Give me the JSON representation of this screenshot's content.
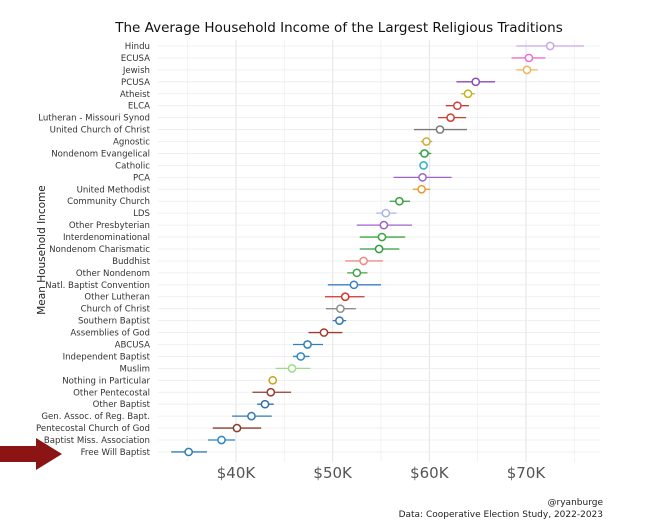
{
  "chart_data": {
    "type": "dot-with-error-bars",
    "title": "The Average Household Income of the Largest Religious Traditions",
    "ylabel": "Mean Household Income",
    "xlabel": "",
    "xlim": [
      33000,
      77000
    ],
    "xticks": [
      40000,
      50000,
      60000,
      70000
    ],
    "xtick_labels": [
      "$40K",
      "$50K",
      "$60K",
      "$70K"
    ],
    "grid": true,
    "points": [
      {
        "label": "Hindu",
        "value": 72500,
        "low": 69000,
        "high": 76000,
        "color": "#c9a6ea"
      },
      {
        "label": "ECUSA",
        "value": 70300,
        "low": 68500,
        "high": 72000,
        "color": "#e86fd0"
      },
      {
        "label": "Jewish",
        "value": 70100,
        "low": 69000,
        "high": 71200,
        "color": "#f2b25a"
      },
      {
        "label": "PCUSA",
        "value": 64800,
        "low": 62800,
        "high": 66800,
        "color": "#8b4ab3"
      },
      {
        "label": "Atheist",
        "value": 64000,
        "low": 63300,
        "high": 64700,
        "color": "#c9b21c"
      },
      {
        "label": "ELCA",
        "value": 62900,
        "low": 61700,
        "high": 64100,
        "color": "#d63a3a"
      },
      {
        "label": "Lutheran - Missouri Synod",
        "value": 62200,
        "low": 60900,
        "high": 63800,
        "color": "#d23c2e"
      },
      {
        "label": "United Church of Christ",
        "value": 61100,
        "low": 58400,
        "high": 63900,
        "color": "#7a7a7a"
      },
      {
        "label": "Agnostic",
        "value": 59700,
        "low": 59100,
        "high": 60300,
        "color": "#d1a93a"
      },
      {
        "label": "Nondenom Evangelical",
        "value": 59500,
        "low": 58900,
        "high": 60200,
        "color": "#2e9e48"
      },
      {
        "label": "Catholic",
        "value": 59400,
        "low": 59200,
        "high": 59700,
        "color": "#29b3c9"
      },
      {
        "label": "PCA",
        "value": 59300,
        "low": 56300,
        "high": 62300,
        "color": "#9a63c9"
      },
      {
        "label": "United Methodist",
        "value": 59200,
        "low": 58300,
        "high": 60100,
        "color": "#e89a2c"
      },
      {
        "label": "Community Church",
        "value": 56900,
        "low": 55900,
        "high": 58000,
        "color": "#35a03a"
      },
      {
        "label": "LDS",
        "value": 55500,
        "low": 54500,
        "high": 56600,
        "color": "#a9b6ea"
      },
      {
        "label": "Other Presbyterian",
        "value": 55300,
        "low": 52500,
        "high": 58200,
        "color": "#9b63c9"
      },
      {
        "label": "Interdenominational",
        "value": 55100,
        "low": 52800,
        "high": 57500,
        "color": "#3aa53a"
      },
      {
        "label": "Nondenom Charismatic",
        "value": 54800,
        "low": 52800,
        "high": 56900,
        "color": "#2f9c40"
      },
      {
        "label": "Buddhist",
        "value": 53200,
        "low": 51300,
        "high": 55200,
        "color": "#f08a82"
      },
      {
        "label": "Other Nondenom",
        "value": 52500,
        "low": 51500,
        "high": 53600,
        "color": "#43a147"
      },
      {
        "label": "Natl. Baptist Convention",
        "value": 52200,
        "low": 49500,
        "high": 55000,
        "color": "#3a7fc6"
      },
      {
        "label": "Other Lutheran",
        "value": 51300,
        "low": 49200,
        "high": 53300,
        "color": "#d0342c"
      },
      {
        "label": "Church of Christ",
        "value": 50800,
        "low": 49300,
        "high": 52400,
        "color": "#8d8d8d"
      },
      {
        "label": "Southern Baptist",
        "value": 50700,
        "low": 50000,
        "high": 51400,
        "color": "#3676b8"
      },
      {
        "label": "Assemblies of God",
        "value": 49100,
        "low": 47500,
        "high": 51000,
        "color": "#a23a2a"
      },
      {
        "label": "ABCUSA",
        "value": 47400,
        "low": 45900,
        "high": 49000,
        "color": "#2f7fb8"
      },
      {
        "label": "Independent Baptist",
        "value": 46700,
        "low": 45900,
        "high": 47600,
        "color": "#2e86c1"
      },
      {
        "label": "Muslim",
        "value": 45800,
        "low": 44100,
        "high": 47700,
        "color": "#9bdc8a"
      },
      {
        "label": "Nothing in Particular",
        "value": 43800,
        "low": 43500,
        "high": 44100,
        "color": "#c9a21c"
      },
      {
        "label": "Other Pentecostal",
        "value": 43600,
        "low": 41700,
        "high": 45700,
        "color": "#9a3a2a"
      },
      {
        "label": "Other Baptist",
        "value": 43000,
        "low": 42200,
        "high": 43900,
        "color": "#2e6fa8"
      },
      {
        "label": "Gen. Assoc. of Reg. Bapt.",
        "value": 41600,
        "low": 39600,
        "high": 43700,
        "color": "#2f78b5"
      },
      {
        "label": "Pentecostal Church of God",
        "value": 40100,
        "low": 37600,
        "high": 42600,
        "color": "#8a3a28"
      },
      {
        "label": "Baptist Miss. Association",
        "value": 38500,
        "low": 37100,
        "high": 39900,
        "color": "#2a84c4"
      },
      {
        "label": "Free Will Baptist",
        "value": 35100,
        "low": 33300,
        "high": 37000,
        "color": "#2e7fb3"
      }
    ],
    "highlight": {
      "label": "Free Will Baptist",
      "marker": "red-arrow",
      "color": "#8b1414"
    }
  },
  "credits": {
    "handle": "@ryanburge",
    "source": "Data: Cooperative Election Study, 2022-2023"
  }
}
